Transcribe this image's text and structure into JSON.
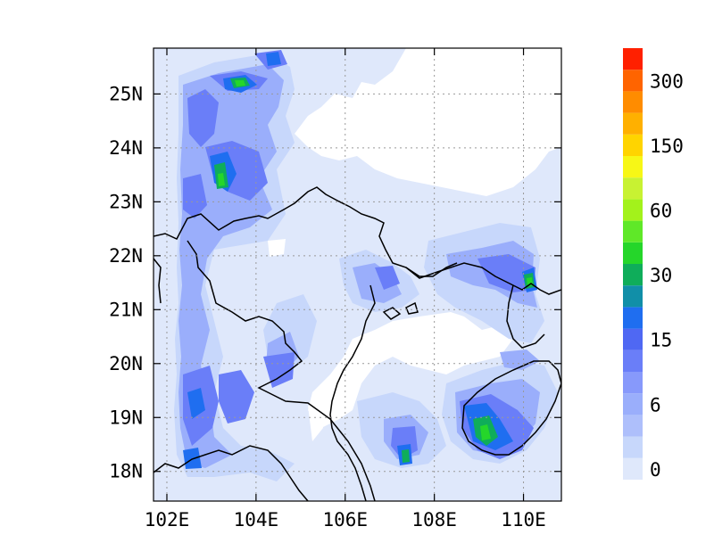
{
  "map": {
    "x_ticks": [
      "102E",
      "104E",
      "106E",
      "108E",
      "110E"
    ],
    "y_ticks": [
      "18N",
      "19N",
      "20N",
      "21N",
      "22N",
      "23N",
      "24N",
      "25N"
    ],
    "x_tick_values": [
      102,
      104,
      106,
      108,
      110
    ],
    "y_tick_values": [
      18,
      19,
      20,
      21,
      22,
      23,
      24,
      25
    ],
    "lon_range": [
      101.7,
      110.85
    ],
    "lat_range": [
      17.45,
      25.85
    ],
    "gridlines": "dotted",
    "colorbar": {
      "labels": [
        "0",
        "6",
        "15",
        "30",
        "60",
        "150",
        "300"
      ],
      "label_levels": [
        0,
        3,
        6,
        9,
        12,
        15,
        18
      ],
      "colors": [
        "#dfe8fb",
        "#c7d7fb",
        "#aebffb",
        "#9aaefb",
        "#8799fb",
        "#6a7ef8",
        "#4f68f3",
        "#1f6ef0",
        "#118fa8",
        "#0fad5a",
        "#25d62a",
        "#5fe828",
        "#a3f21b",
        "#c8f232",
        "#f7f716",
        "#ffd400",
        "#ffb000",
        "#ff8c00",
        "#ff6400",
        "#ff2000"
      ]
    }
  }
}
